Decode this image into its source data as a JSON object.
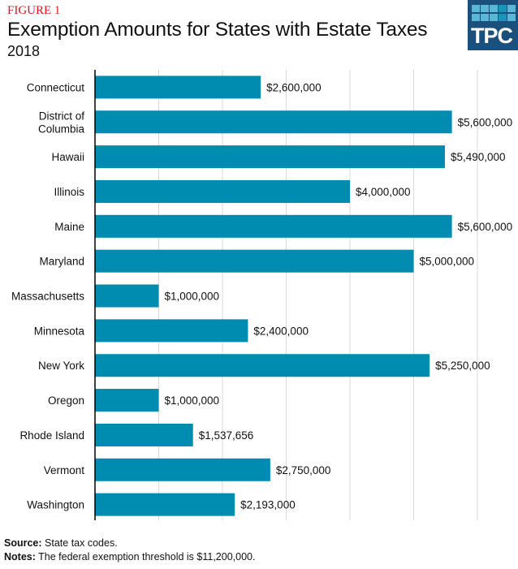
{
  "header": {
    "figure_label": "FIGURE 1",
    "logo_text": "TPC"
  },
  "chart_data": {
    "type": "bar",
    "orientation": "horizontal",
    "title": "Exemption Amounts for States with Estate Taxes",
    "subtitle": "2018",
    "categories": [
      "Connecticut",
      "District of Columbia",
      "Hawaii",
      "Illinois",
      "Maine",
      "Maryland",
      "Massachusetts",
      "Minnesota",
      "New York",
      "Oregon",
      "Rhode Island",
      "Vermont",
      "Washington"
    ],
    "values": [
      2600000,
      5600000,
      5490000,
      4000000,
      5600000,
      5000000,
      1000000,
      2400000,
      5250000,
      1000000,
      1537656,
      2750000,
      2193000
    ],
    "data_labels": [
      "$2,600,000",
      "$5,600,000",
      "$5,490,000",
      "$4,000,000",
      "$5,600,000",
      "$5,000,000",
      "$1,000,000",
      "$2,400,000",
      "$5,250,000",
      "$1,000,000",
      "$1,537,656",
      "$2,750,000",
      "$2,193,000"
    ],
    "xlim": [
      0,
      6500000
    ],
    "grid_step": 1000000,
    "grid": true,
    "bar_color": "#008bb0"
  },
  "footer": {
    "source_label": "Source:",
    "source_text": "State tax codes.",
    "notes_label": "Notes:",
    "notes_text": "The federal exemption threshold is $11,200,000."
  }
}
